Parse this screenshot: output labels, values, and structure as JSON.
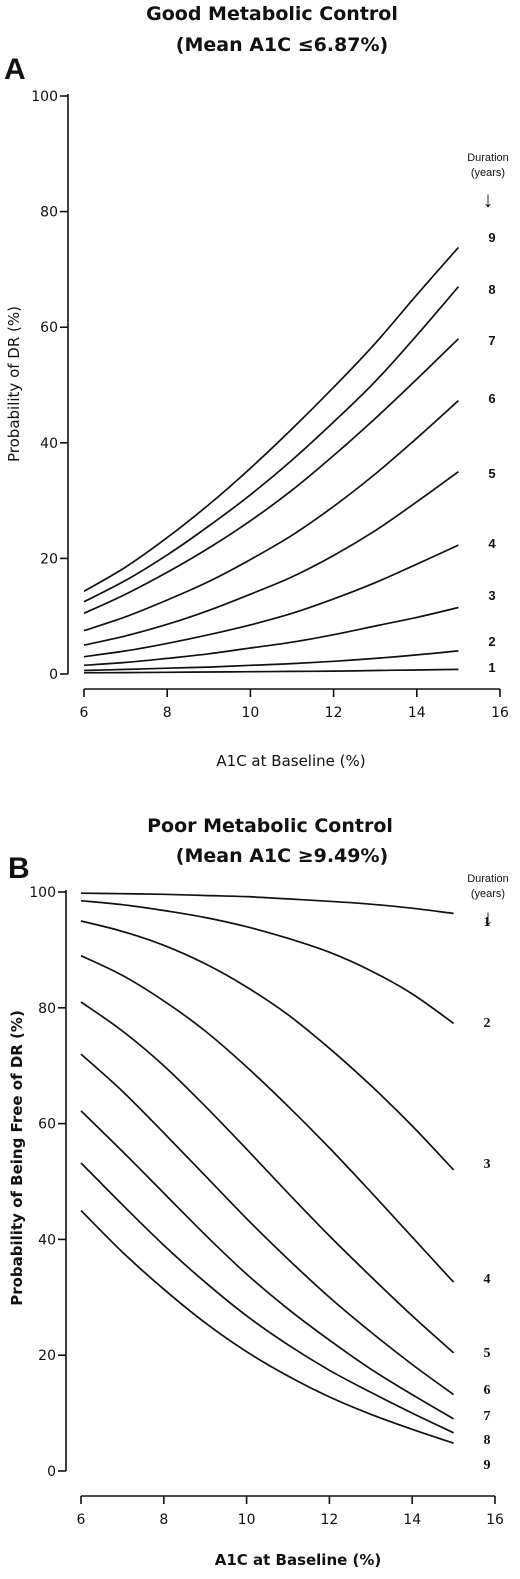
{
  "chart_data": [
    {
      "type": "line",
      "panel": "A",
      "title": "Good Metabolic Control",
      "subtitle": "(Mean A1C ≤6.87%)",
      "xlabel": "A1C at Baseline (%)",
      "ylabel": "Probability of DR (%)",
      "xlim": [
        6,
        16
      ],
      "ylim": [
        0,
        100
      ],
      "xticks": [
        "6",
        "8",
        "10",
        "12",
        "14",
        "16"
      ],
      "yticks": [
        "0",
        "20",
        "40",
        "60",
        "80",
        "100"
      ],
      "legend_header": [
        "Duration",
        "(years)"
      ],
      "arrow": "↓",
      "x": [
        6,
        7,
        8,
        9,
        10,
        11,
        12,
        13,
        14,
        15
      ],
      "series": [
        {
          "name": "1",
          "values": [
            0.2,
            0.25,
            0.3,
            0.35,
            0.4,
            0.45,
            0.5,
            0.6,
            0.7,
            0.8
          ]
        },
        {
          "name": "2",
          "values": [
            0.6,
            0.8,
            1.0,
            1.2,
            1.5,
            1.8,
            2.2,
            2.7,
            3.3,
            4.0
          ]
        },
        {
          "name": "3",
          "values": [
            1.5,
            2.0,
            2.7,
            3.5,
            4.5,
            5.5,
            6.8,
            8.3,
            9.8,
            11.5
          ]
        },
        {
          "name": "4",
          "values": [
            3.0,
            4.0,
            5.3,
            6.8,
            8.5,
            10.5,
            13.0,
            15.8,
            19.0,
            22.3
          ]
        },
        {
          "name": "5",
          "values": [
            5.0,
            6.6,
            8.6,
            11.0,
            13.8,
            16.8,
            20.5,
            24.8,
            29.8,
            35.0
          ]
        },
        {
          "name": "6",
          "values": [
            7.5,
            9.9,
            12.8,
            16.0,
            19.8,
            24.0,
            29.0,
            34.6,
            40.8,
            47.3
          ]
        },
        {
          "name": "7",
          "values": [
            10.5,
            13.8,
            17.6,
            21.8,
            26.5,
            31.8,
            37.8,
            44.2,
            51.0,
            58.0
          ]
        },
        {
          "name": "8",
          "values": [
            12.5,
            16.2,
            20.6,
            25.6,
            31.0,
            37.0,
            43.6,
            50.6,
            58.6,
            67.0
          ]
        },
        {
          "name": "9",
          "values": [
            14.3,
            18.5,
            23.6,
            29.3,
            35.6,
            42.4,
            49.6,
            57.2,
            65.6,
            73.8
          ]
        }
      ]
    },
    {
      "type": "line",
      "panel": "B",
      "title": "Poor Metabolic Control",
      "subtitle": "(Mean A1C ≥9.49%)",
      "xlabel": "A1C at Baseline (%)",
      "ylabel": "Probability of Being Free of DR (%)",
      "xlim": [
        6,
        16
      ],
      "ylim": [
        0,
        100
      ],
      "xticks": [
        "6",
        "8",
        "10",
        "12",
        "14",
        "16"
      ],
      "yticks": [
        "0",
        "20",
        "40",
        "60",
        "80",
        "100"
      ],
      "legend_header": [
        "Duration",
        "(years)"
      ],
      "arrow": "↓",
      "x": [
        6,
        7,
        8,
        9,
        10,
        11,
        12,
        13,
        14,
        15
      ],
      "series": [
        {
          "name": "1",
          "values": [
            99.8,
            99.7,
            99.6,
            99.4,
            99.2,
            98.8,
            98.4,
            97.9,
            97.2,
            96.3
          ]
        },
        {
          "name": "2",
          "values": [
            98.5,
            97.8,
            96.8,
            95.6,
            94.0,
            92.0,
            89.6,
            86.4,
            82.4,
            77.3
          ]
        },
        {
          "name": "3",
          "values": [
            95.0,
            93.2,
            90.8,
            87.6,
            83.6,
            78.8,
            73.0,
            66.6,
            59.6,
            52.0
          ]
        },
        {
          "name": "4",
          "values": [
            89.0,
            85.6,
            81.2,
            76.0,
            69.8,
            63.0,
            55.8,
            48.2,
            40.4,
            32.6
          ]
        },
        {
          "name": "5",
          "values": [
            81.0,
            76.0,
            70.0,
            63.0,
            55.6,
            48.0,
            40.6,
            33.6,
            26.8,
            20.4
          ]
        },
        {
          "name": "6",
          "values": [
            72.0,
            65.6,
            58.4,
            51.0,
            43.6,
            36.6,
            30.0,
            24.0,
            18.4,
            13.2
          ]
        },
        {
          "name": "7",
          "values": [
            62.2,
            55.2,
            48.0,
            40.8,
            34.0,
            28.0,
            22.6,
            17.6,
            13.2,
            9.0
          ]
        },
        {
          "name": "8",
          "values": [
            53.2,
            46.0,
            39.0,
            32.6,
            26.8,
            21.8,
            17.4,
            13.6,
            10.0,
            6.6
          ]
        },
        {
          "name": "9",
          "values": [
            45.0,
            37.8,
            31.4,
            25.6,
            20.6,
            16.4,
            12.8,
            9.8,
            7.2,
            4.8
          ]
        }
      ]
    }
  ]
}
